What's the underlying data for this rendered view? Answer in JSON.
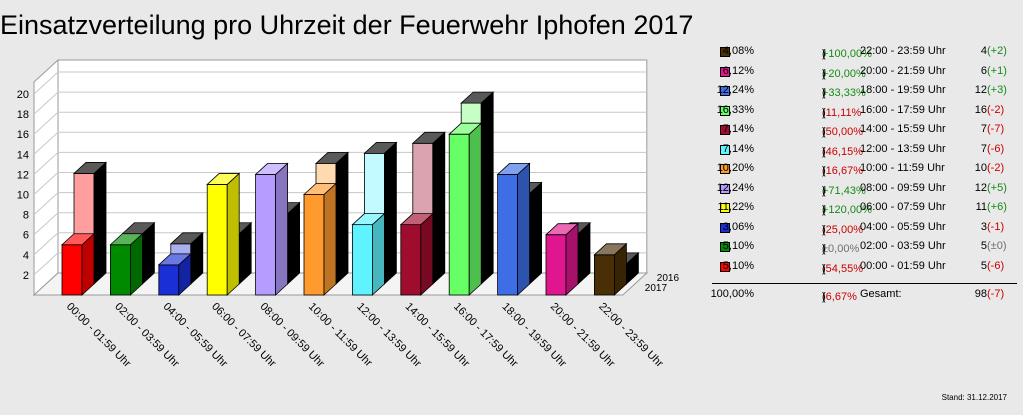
{
  "title": "Einsatzverteilung pro Uhrzeit der Feuerwehr Iphofen 2017",
  "stand": "Stand: 31.12.2017",
  "chart_data": {
    "type": "bar",
    "title": "Einsatzverteilung pro Uhrzeit der Feuerwehr Iphofen 2017",
    "categories": [
      "00:00 - 01:59 Uhr",
      "02:00 - 03:59 Uhr",
      "04:00 - 05:59 Uhr",
      "06:00 - 07:59 Uhr",
      "08:00 - 09:59 Uhr",
      "10:00 - 11:59 Uhr",
      "12:00 - 13:59 Uhr",
      "14:00 - 15:59 Uhr",
      "16:00 - 17:59 Uhr",
      "18:00 - 19:59 Uhr",
      "20:00 - 21:59 Uhr",
      "22:00 - 23:59 Uhr"
    ],
    "series": [
      {
        "name": "2017",
        "values": [
          5,
          5,
          3,
          11,
          12,
          10,
          7,
          7,
          16,
          12,
          6,
          4
        ]
      },
      {
        "name": "2016",
        "values": [
          11,
          5,
          4,
          5,
          7,
          12,
          13,
          14,
          18,
          9,
          5,
          2
        ]
      }
    ],
    "colors": [
      "#ff0000",
      "#008a00",
      "#1a2fd6",
      "#ffff00",
      "#b59cff",
      "#ff9a2e",
      "#5ff3ff",
      "#a00c2e",
      "#66ff66",
      "#3d6ee6",
      "#e0168f",
      "#4a2e06"
    ],
    "yticks": [
      "2",
      "4",
      "6",
      "8",
      "10",
      "12",
      "14",
      "16",
      "18",
      "20"
    ],
    "ylim": [
      0,
      20
    ],
    "grid": true,
    "depth_labels": [
      "2016",
      "2017"
    ]
  },
  "legend": {
    "rows": [
      {
        "pct": "4,08%",
        "open": "(",
        "chg": "+100,00%",
        "close": ")",
        "sign": "pos",
        "time": "22:00 - 23:59 Uhr",
        "count": "4",
        "delta": "(+2)",
        "color": "#4a2e06"
      },
      {
        "pct": "6,12%",
        "open": "(",
        "chg": "+20,00%",
        "close": ")",
        "sign": "pos",
        "time": "20:00 - 21:59 Uhr",
        "count": "6",
        "delta": "(+1)",
        "color": "#e0168f"
      },
      {
        "pct": "12,24%",
        "open": "(",
        "chg": "+33,33%",
        "close": ")",
        "sign": "pos",
        "time": "18:00 - 19:59 Uhr",
        "count": "12",
        "delta": "(+3)",
        "color": "#3d6ee6"
      },
      {
        "pct": "16,33%",
        "open": "(",
        "chg": "-11,11%",
        "close": ")",
        "sign": "neg",
        "time": "16:00 - 17:59 Uhr",
        "count": "16",
        "delta": "(-2)",
        "color": "#66ff66"
      },
      {
        "pct": "7,14%",
        "open": "(",
        "chg": "-50,00%",
        "close": ")",
        "sign": "neg",
        "time": "14:00 - 15:59 Uhr",
        "count": "7",
        "delta": "(-7)",
        "color": "#a00c2e"
      },
      {
        "pct": "7,14%",
        "open": "(",
        "chg": "-46,15%",
        "close": ")",
        "sign": "neg",
        "time": "12:00 - 13:59 Uhr",
        "count": "7",
        "delta": "(-6)",
        "color": "#5ff3ff"
      },
      {
        "pct": "10,20%",
        "open": "(",
        "chg": "-16,67%",
        "close": ")",
        "sign": "neg",
        "time": "10:00 - 11:59 Uhr",
        "count": "10",
        "delta": "(-2)",
        "color": "#ff9a2e"
      },
      {
        "pct": "12,24%",
        "open": "(",
        "chg": "+71,43%",
        "close": ")",
        "sign": "pos",
        "time": "08:00 - 09:59 Uhr",
        "count": "12",
        "delta": "(+5)",
        "color": "#b59cff"
      },
      {
        "pct": "11,22%",
        "open": "(",
        "chg": "+120,00%",
        "close": ")",
        "sign": "pos",
        "time": "06:00 - 07:59 Uhr",
        "count": "11",
        "delta": "(+6)",
        "color": "#ffff00"
      },
      {
        "pct": "3,06%",
        "open": "(",
        "chg": "-25,00%",
        "close": ")",
        "sign": "neg",
        "time": "04:00 - 05:59 Uhr",
        "count": "3",
        "delta": "(-1)",
        "color": "#1a2fd6"
      },
      {
        "pct": "5,10%",
        "open": "(",
        "chg": "±0,00%",
        "close": ")",
        "sign": "zero",
        "time": "02:00 - 03:59 Uhr",
        "count": "5",
        "delta": "(±0)",
        "color": "#008a00"
      },
      {
        "pct": "5,10%",
        "open": "(",
        "chg": "-54,55%",
        "close": ")",
        "sign": "neg",
        "time": "00:00 - 01:59 Uhr",
        "count": "5",
        "delta": "(-6)",
        "color": "#ff0000"
      }
    ],
    "total": {
      "pct": "100,00%",
      "open": "(",
      "chg": "-6,67%",
      "close": ")",
      "sign": "neg",
      "label": "Gesamt:",
      "count": "98",
      "delta": "(-7)"
    }
  }
}
